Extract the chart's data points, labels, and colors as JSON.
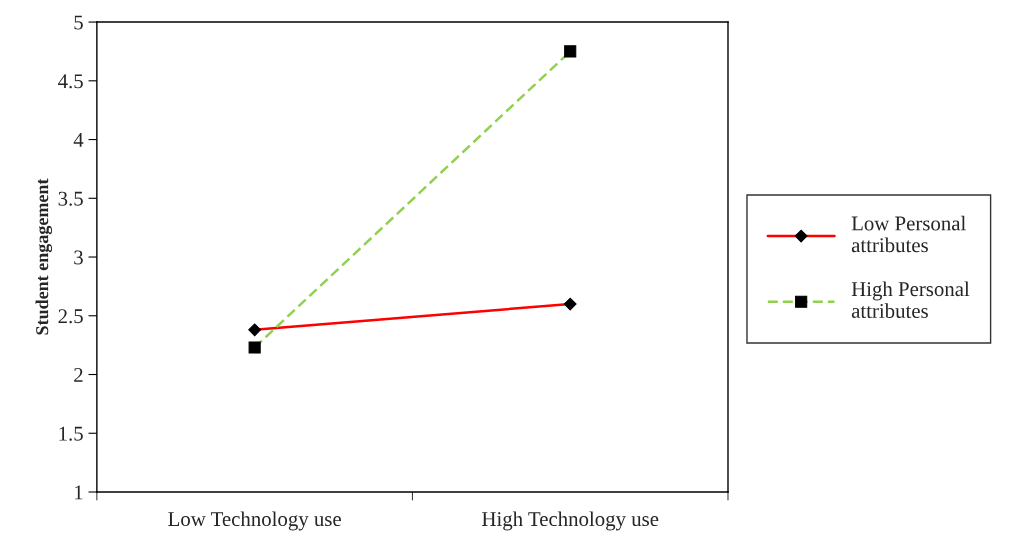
{
  "chart_data": {
    "type": "line",
    "ylabel": "Student engagement",
    "categories": [
      "Low Technology use",
      "High Technology use"
    ],
    "series": [
      {
        "name": "Low Personal attributes",
        "color": "#ff0000",
        "values": [
          2.38,
          2.6
        ],
        "marker": "diamond",
        "line_style": "solid"
      },
      {
        "name": "High Personal attributes",
        "color": "#92d050",
        "values": [
          2.23,
          4.75
        ],
        "marker": "square",
        "line_style": "dashed"
      }
    ],
    "ylim": [
      1,
      5
    ],
    "yticks": [
      1,
      1.5,
      2,
      2.5,
      3,
      3.5,
      4,
      4.5,
      5
    ],
    "grid": false,
    "legend": "right"
  }
}
